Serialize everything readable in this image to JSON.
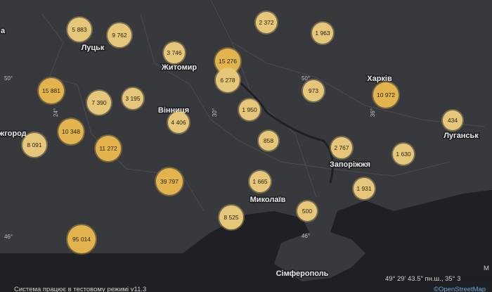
{
  "map": {
    "clusters": [
      "5 883",
      "9 762",
      "2 372",
      "1 963",
      "3 746",
      "15 276",
      "6 278",
      "15 881",
      "7 390",
      "3 195",
      "973",
      "10 972",
      "1 950",
      "4 406",
      "434",
      "8 091",
      "10 348",
      "858",
      "11 272",
      "2 767",
      "1 630",
      "39 797",
      "1 665",
      "1 931",
      "500",
      "8 525",
      "95 014"
    ],
    "cities": [
      "Луцьк",
      "Житомир",
      "Вінниця",
      "Харків",
      "Луганськ",
      "жгород",
      "Запоріжжя",
      "Миколаїв",
      "Сімферополь"
    ],
    "grid_labels": [
      "50°",
      "24°",
      "30°",
      "50°",
      "36°",
      "46°",
      "46°"
    ],
    "edge_labels": [
      "а",
      "М"
    ],
    "coordinates": "49° 29' 43.5\" пн.ш., 35° 3",
    "status": "Система працює в тестовому режимі v11.3",
    "attribution": "©OpenStreetMap"
  }
}
